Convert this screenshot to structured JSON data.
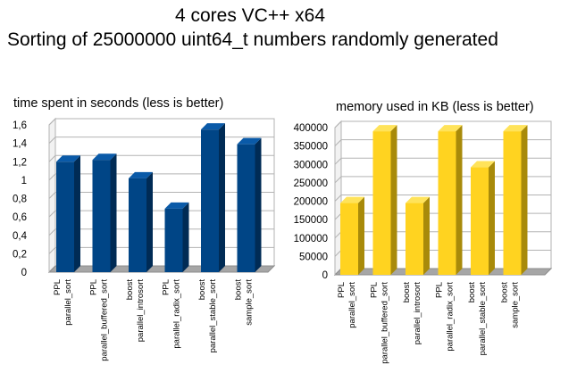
{
  "header": {
    "title_line1": "4 cores VC++ x64",
    "title_line2": "Sorting of 25000000 uint64_t numbers randomly generated"
  },
  "chart_data": [
    {
      "type": "bar",
      "title": "time spent in seconds (less is better)",
      "categories": [
        [
          "PPL",
          "parallel_sort"
        ],
        [
          "PPL",
          "parallel_buffered_sort"
        ],
        [
          "boost",
          "parallel_introsort"
        ],
        [
          "PPL",
          "parallel_radix_sort"
        ],
        [
          "boost",
          "parallel_stable_sort"
        ],
        [
          "boost",
          "sample_sort"
        ]
      ],
      "values": [
        1.2,
        1.22,
        1.02,
        0.69,
        1.55,
        1.39
      ],
      "ylim": [
        0,
        1.6
      ],
      "yticks": [
        "0",
        "0,2",
        "0,4",
        "0,6",
        "0,8",
        "1",
        "1,2",
        "1,4",
        "1,6"
      ],
      "grid": true,
      "colors": {
        "front": "#004586",
        "side": "#002b55",
        "top": "#0a5aa8"
      }
    },
    {
      "type": "bar",
      "title": "memory used in KB (less is better)",
      "categories": [
        [
          "PPL",
          "parallel_sort"
        ],
        [
          "PPL",
          "parallel_buffered_sort"
        ],
        [
          "boost",
          "parallel_introsort"
        ],
        [
          "PPL",
          "parallel_radix_sort"
        ],
        [
          "boost",
          "parallel_stable_sort"
        ],
        [
          "boost",
          "sample_sort"
        ]
      ],
      "values": [
        195000,
        390000,
        195000,
        390000,
        292000,
        390000
      ],
      "ylim": [
        0,
        400000
      ],
      "yticks": [
        "0",
        "50000",
        "100000",
        "150000",
        "200000",
        "250000",
        "300000",
        "350000",
        "400000"
      ],
      "grid": true,
      "colors": {
        "front": "#ffd320",
        "side": "#a88a0a",
        "top": "#ffe35a"
      }
    }
  ]
}
